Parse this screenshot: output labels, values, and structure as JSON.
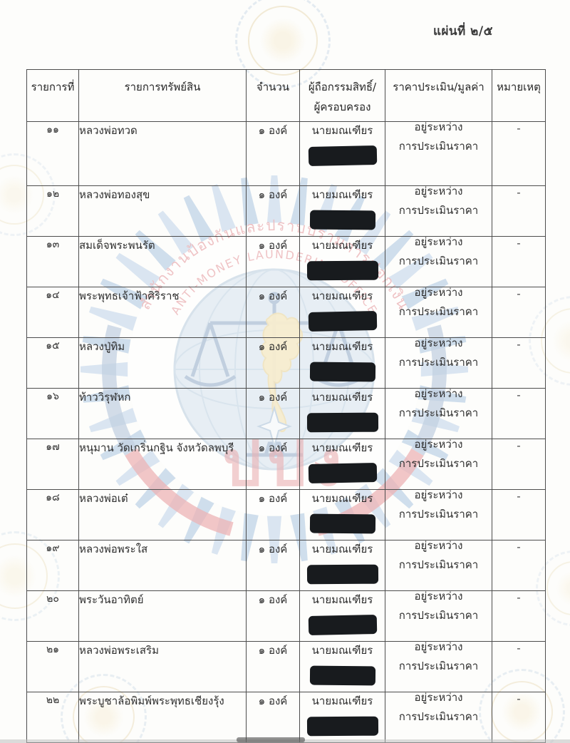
{
  "page": {
    "label": "แผ่นที่ ๒/๕"
  },
  "watermark": {
    "org_thai": "สำนักงานป้องกันและปราบปรามการฟอกเงิน",
    "org_english": "ANTI-MONEY LAUNDERING OFFICE",
    "abbr": "ปปง",
    "colors": {
      "ray_blue": "#a3c0de",
      "ray_blue_alt": "#b9cfe8",
      "text_red": "#df8289",
      "globe_blue": "#d2e1ef",
      "map_yellow": "#f2dfa6",
      "ribbon_red": "#dd6b72",
      "ribbon_blue": "#8aa6c9"
    }
  },
  "table": {
    "header": {
      "col1": "รายการที่",
      "col2": "รายการทรัพย์สิน",
      "col3": "จำนวน",
      "col4_line1": "ผู้ถือกรรมสิทธิ์/",
      "col4_line2": "ผู้ครอบครอง",
      "col5": "ราคาประเมิน/มูลค่า",
      "col6": "หมายเหตุ"
    },
    "redaction_color": "#181b1e",
    "border_color": "#4d4d4d",
    "rows": [
      {
        "no": "๑๑",
        "asset": "หลวงพ่อทวด",
        "quantity": "๑ องค์",
        "owner": "นายมณเฑียร",
        "owner_redacted": true,
        "value_line1": "อยู่ระหว่าง",
        "value_line2": "การประเมินราคา",
        "note": "-"
      },
      {
        "no": "๑๒",
        "asset": "หลวงพ่อทองสุข",
        "quantity": "๑ องค์",
        "owner": "นายมณเฑียร",
        "owner_redacted": true,
        "value_line1": "อยู่ระหว่าง",
        "value_line2": "การประเมินราคา",
        "note": "-"
      },
      {
        "no": "๑๓",
        "asset": "สมเด็จพระพนรัต",
        "quantity": "๑ องค์",
        "owner": "นายมณเฑียร",
        "owner_redacted": true,
        "value_line1": "อยู่ระหว่าง",
        "value_line2": "การประเมินราคา",
        "note": "-"
      },
      {
        "no": "๑๔",
        "asset": "พระพุทธเจ้าฟ้าศิริราช",
        "quantity": "๑ องค์",
        "owner": "นายมณเฑียร",
        "owner_redacted": true,
        "value_line1": "อยู่ระหว่าง",
        "value_line2": "การประเมินราคา",
        "note": "-"
      },
      {
        "no": "๑๕",
        "asset": "หลวงปู่ทิม",
        "quantity": "๑ องค์",
        "owner": "นายมณเฑียร",
        "owner_redacted": true,
        "value_line1": "อยู่ระหว่าง",
        "value_line2": "การประเมินราคา",
        "note": "-"
      },
      {
        "no": "๑๖",
        "asset": "ท้าววิรุฬหก",
        "quantity": "๑ องค์",
        "owner": "นายมณเฑียร",
        "owner_redacted": true,
        "value_line1": "อยู่ระหว่าง",
        "value_line2": "การประเมินราคา",
        "note": "-"
      },
      {
        "no": "๑๗",
        "asset": "หนุมาน วัดเกริ่นกฐิน จังหวัดลพบุรี",
        "quantity": "๑ องค์",
        "owner": "นายมณเฑียร",
        "owner_redacted": true,
        "value_line1": "อยู่ระหว่าง",
        "value_line2": "การประเมินราคา",
        "note": "-"
      },
      {
        "no": "๑๘",
        "asset": "หลวงพ่อเต๋",
        "quantity": "๑ องค์",
        "owner": "นายมณเฑียร",
        "owner_redacted": true,
        "value_line1": "อยู่ระหว่าง",
        "value_line2": "การประเมินราคา",
        "note": "-"
      },
      {
        "no": "๑๙",
        "asset": "หลวงพ่อพระใส",
        "quantity": "๑ องค์",
        "owner": "นายมณเฑียร",
        "owner_redacted": true,
        "value_line1": "อยู่ระหว่าง",
        "value_line2": "การประเมินราคา",
        "note": "-"
      },
      {
        "no": "๒๐",
        "asset": "พระวันอาทิตย์",
        "quantity": "๑ องค์",
        "owner": "นายมณเฑียร",
        "owner_redacted": true,
        "value_line1": "อยู่ระหว่าง",
        "value_line2": "การประเมินราคา",
        "note": "-"
      },
      {
        "no": "๒๑",
        "asset": "หลวงพ่อพระเสริม",
        "quantity": "๑ องค์",
        "owner": "นายมณเฑียร",
        "owner_redacted": true,
        "value_line1": "อยู่ระหว่าง",
        "value_line2": "การประเมินราคา",
        "note": "-"
      },
      {
        "no": "๒๒",
        "asset": "พระบูชาล้อพิมพ์พระพุทธเชียงรุ้ง",
        "quantity": "๑ องค์",
        "owner": "นายมณเฑียร",
        "owner_redacted": true,
        "value_line1": "อยู่ระหว่าง",
        "value_line2": "การประเมินราคา",
        "note": "-"
      }
    ]
  }
}
